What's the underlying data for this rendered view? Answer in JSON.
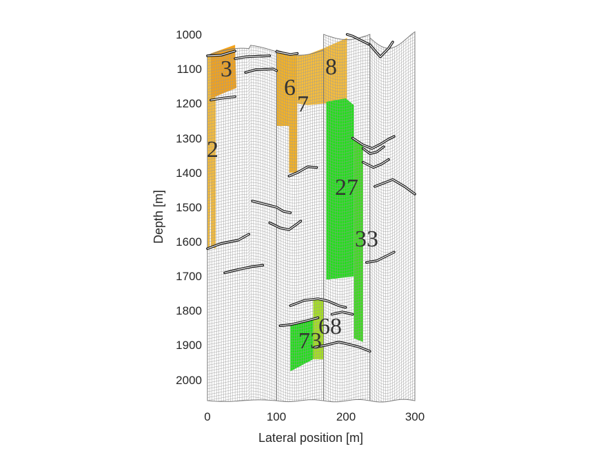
{
  "figure": {
    "xlabel": "Lateral position [m]",
    "ylabel": "Depth [m]",
    "xlim": [
      0,
      300
    ],
    "ylim": [
      1000,
      2060
    ],
    "y_reversed": true,
    "x_ticks": [
      "0",
      "100",
      "200",
      "300"
    ],
    "y_ticks": [
      "1000",
      "1100",
      "1200",
      "1300",
      "1400",
      "1500",
      "1600",
      "1700",
      "1800",
      "1900",
      "2000"
    ]
  },
  "colors": {
    "grid_line": "#9a9a9a",
    "fault_line": "#111111",
    "orange_dark": "#f3a21b",
    "orange": "#f5b223",
    "orange_light": "#f7bd3a",
    "green": "#22e01a",
    "green_alt": "#3ddc1e",
    "yellow_green": "#a6e21e"
  },
  "regions": [
    {
      "id": "2",
      "label": "2",
      "color": "orange_light"
    },
    {
      "id": "3",
      "label": "3",
      "color": "orange_dark"
    },
    {
      "id": "6",
      "label": "6",
      "color": "orange"
    },
    {
      "id": "7",
      "label": "7",
      "color": "orange"
    },
    {
      "id": "8",
      "label": "8",
      "color": "orange_light"
    },
    {
      "id": "27",
      "label": "27",
      "color": "green"
    },
    {
      "id": "33",
      "label": "33",
      "color": "green_alt"
    },
    {
      "id": "68",
      "label": "68",
      "color": "yellow_green"
    },
    {
      "id": "73",
      "label": "73",
      "color": "green"
    }
  ]
}
